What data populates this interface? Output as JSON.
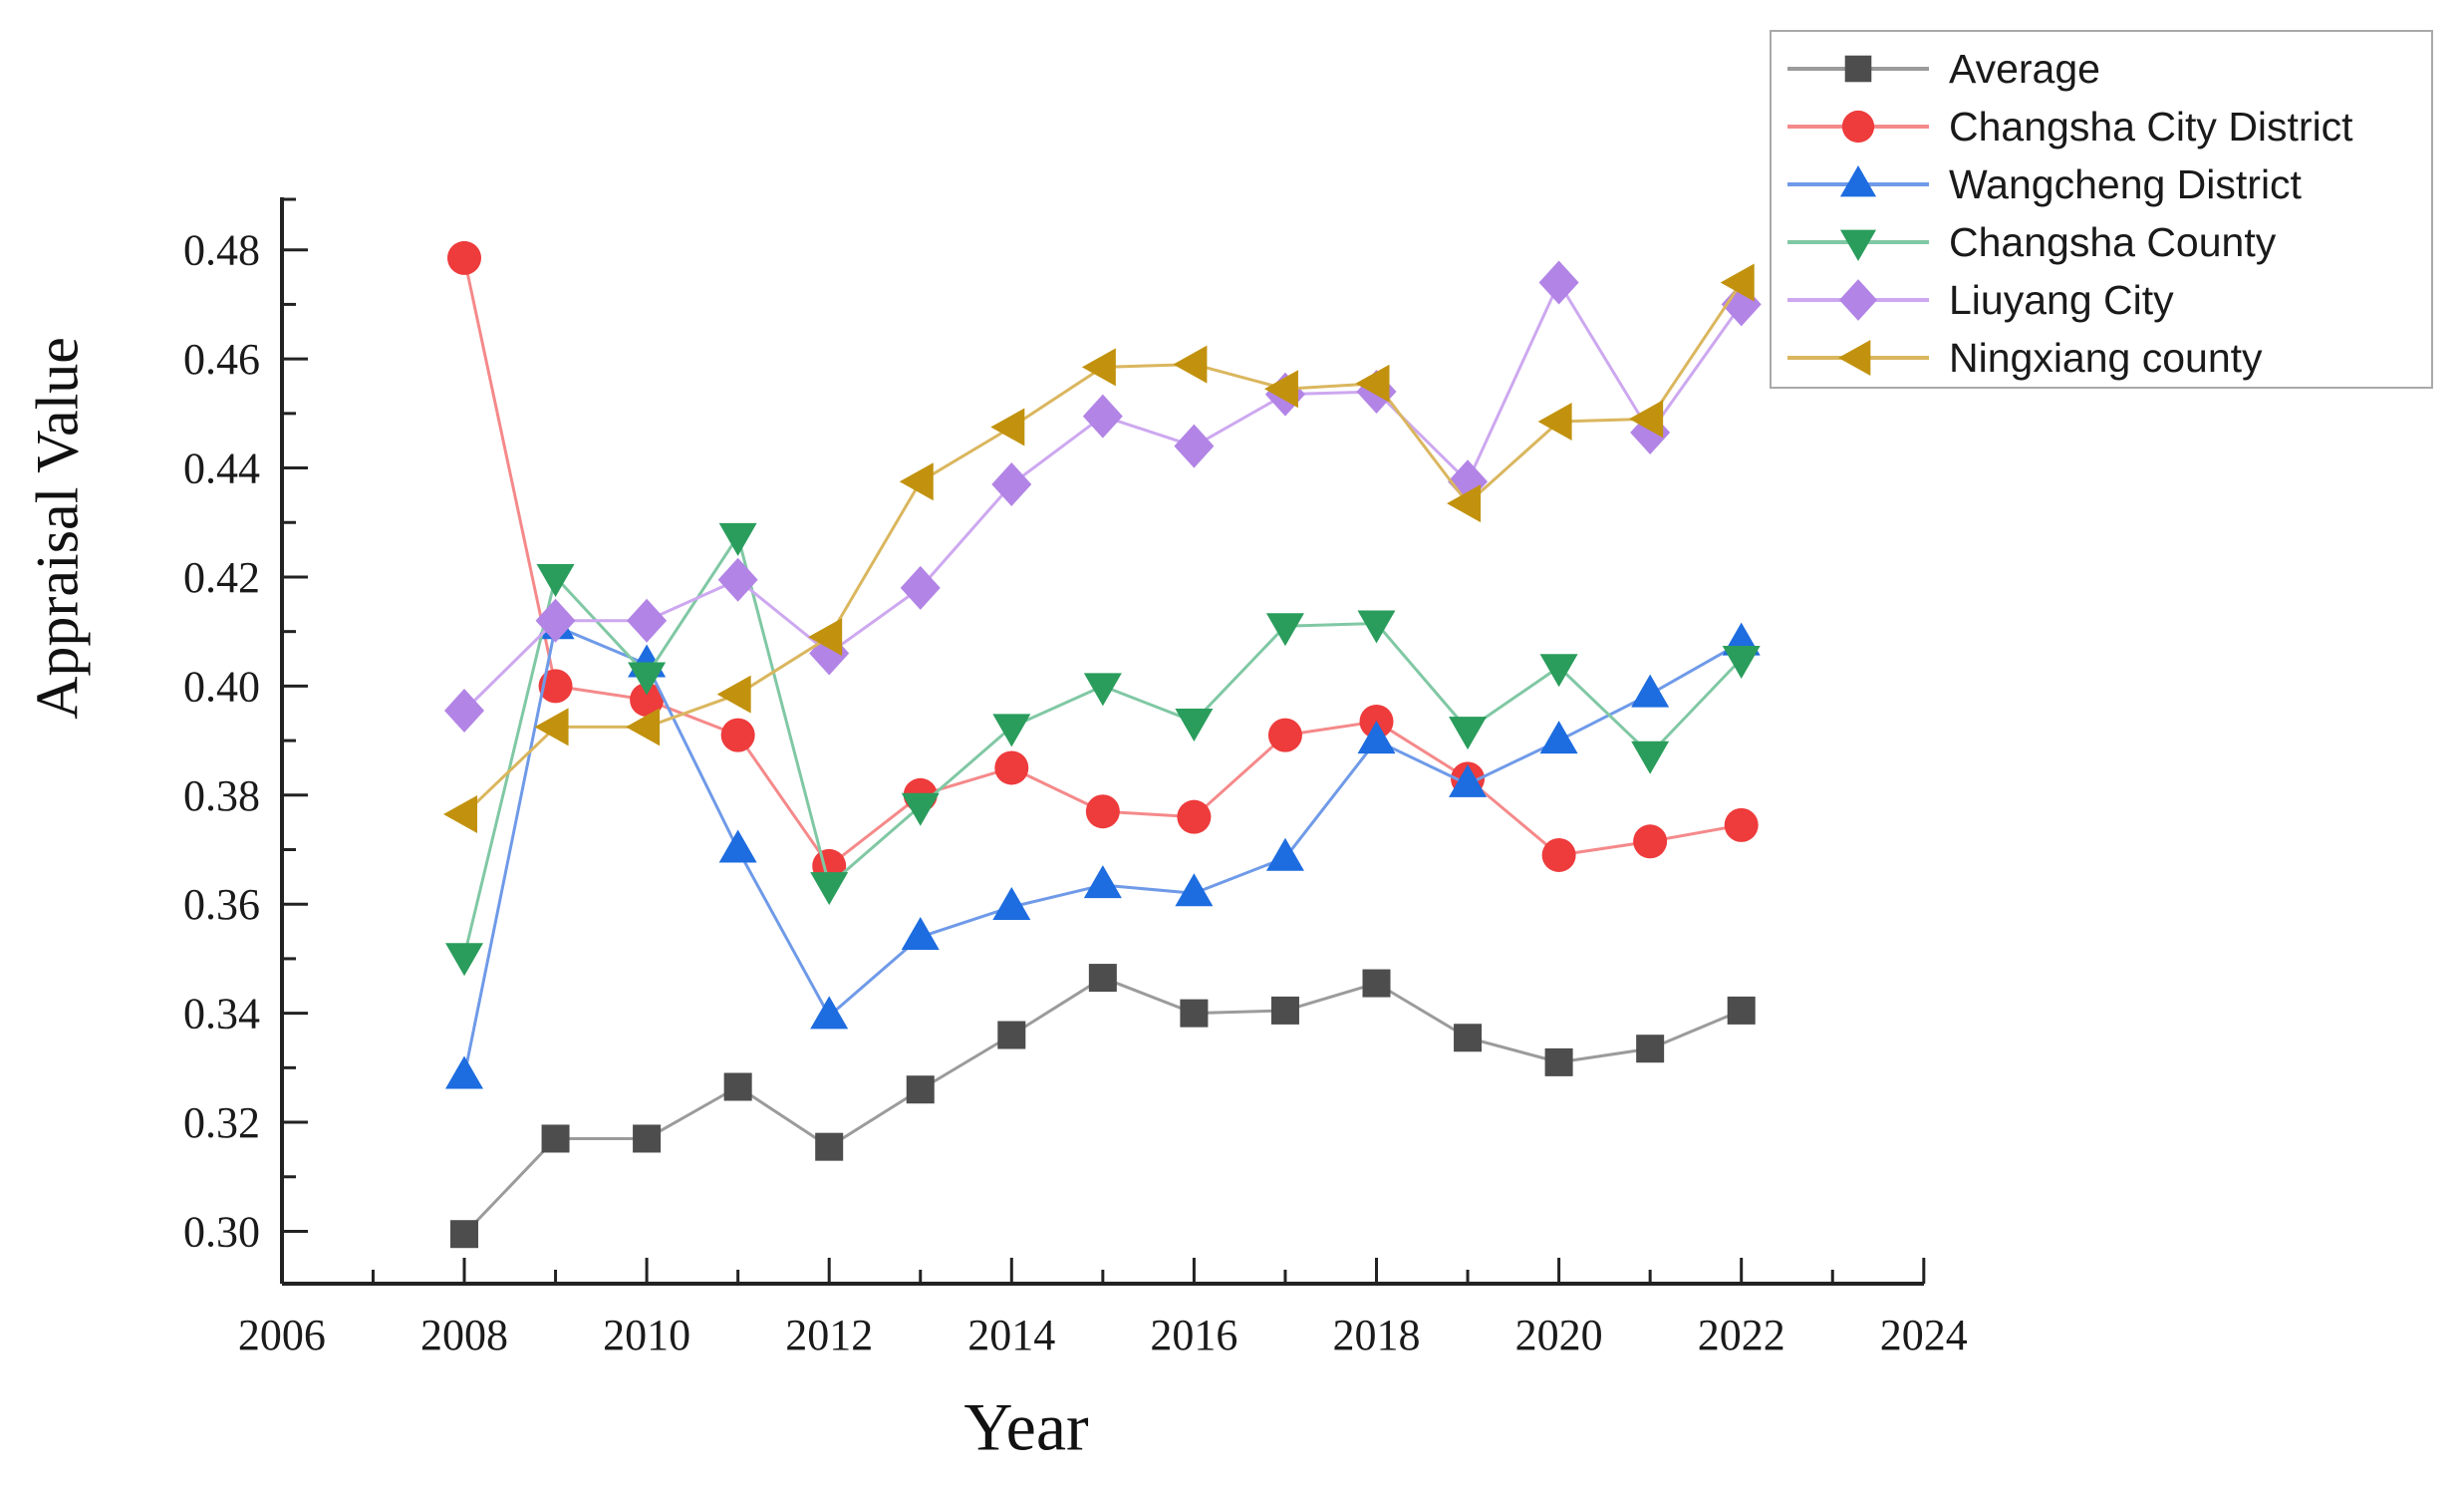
{
  "figure": {
    "background": "#ffffff"
  },
  "chart_data": {
    "type": "line",
    "title": "",
    "xlabel": "Year",
    "ylabel": "Appraisal Value",
    "grid": false,
    "legend_position": "top-right",
    "xlim": [
      2006,
      2024
    ],
    "ylim": [
      0.29,
      0.49
    ],
    "x": [
      2008,
      2009,
      2010,
      2011,
      2012,
      2013,
      2014,
      2015,
      2016,
      2017,
      2018,
      2019,
      2020,
      2021,
      2022
    ],
    "x_tick_labels": [
      "2006",
      "2008",
      "2010",
      "2012",
      "2014",
      "2016",
      "2018",
      "2020",
      "2022",
      "2024"
    ],
    "x_tick_values": [
      2006,
      2008,
      2010,
      2012,
      2014,
      2016,
      2018,
      2020,
      2022,
      2024
    ],
    "x_minor_tick_values": [
      2007,
      2009,
      2011,
      2013,
      2015,
      2017,
      2019,
      2021,
      2023
    ],
    "y_tick_labels": [
      "0.30",
      "0.32",
      "0.34",
      "0.36",
      "0.38",
      "0.40",
      "0.42",
      "0.44",
      "0.46",
      "0.48"
    ],
    "y_tick_values": [
      0.3,
      0.32,
      0.34,
      0.36,
      0.38,
      0.4,
      0.42,
      0.44,
      0.46,
      0.48
    ],
    "y_minor_tick_values": [
      0.31,
      0.33,
      0.35,
      0.37,
      0.39,
      0.41,
      0.43,
      0.45,
      0.47
    ],
    "series": [
      {
        "name": "Average",
        "marker": "square",
        "marker_color": "#4d4d4d",
        "line_color": "#9b9b9b",
        "values": [
          0.2995,
          0.317,
          0.317,
          0.3265,
          0.3155,
          0.326,
          0.336,
          0.3465,
          0.34,
          0.3405,
          0.3455,
          0.3355,
          0.331,
          0.3335,
          0.3405
        ]
      },
      {
        "name": "Changsha City District",
        "marker": "circle",
        "marker_color": "#ee3b3c",
        "line_color": "#f5898a",
        "values": [
          0.4785,
          0.4,
          0.3975,
          0.391,
          0.367,
          0.38,
          0.385,
          0.377,
          0.376,
          0.391,
          0.3935,
          0.383,
          0.369,
          0.3715,
          0.3745
        ]
      },
      {
        "name": "Wangcheng District",
        "marker": "triangle-up",
        "marker_color": "#1d6ce0",
        "line_color": "#6f9ae8",
        "values": [
          0.3285,
          0.411,
          0.404,
          0.37,
          0.3395,
          0.354,
          0.3595,
          0.3635,
          0.362,
          0.3685,
          0.39,
          0.382,
          0.39,
          0.3985,
          0.408
        ]
      },
      {
        "name": "Changsha County",
        "marker": "triangle-down",
        "marker_color": "#2a9d5c",
        "line_color": "#80c8a4",
        "values": [
          0.3505,
          0.42,
          0.402,
          0.4275,
          0.3635,
          0.378,
          0.3925,
          0.4,
          0.3935,
          0.411,
          0.4115,
          0.392,
          0.4035,
          0.3875,
          0.405
        ]
      },
      {
        "name": "Liuyang City",
        "marker": "diamond",
        "marker_color": "#b284e6",
        "line_color": "#cda8f0",
        "values": [
          0.3955,
          0.412,
          0.412,
          0.4195,
          0.406,
          0.418,
          0.437,
          0.4495,
          0.444,
          0.4535,
          0.454,
          0.4375,
          0.474,
          0.4465,
          0.47
        ]
      },
      {
        "name": "Ningxiang county",
        "marker": "triangle-left",
        "marker_color": "#c2920e",
        "line_color": "#dab65e",
        "values": [
          0.3765,
          0.3925,
          0.3925,
          0.3985,
          0.409,
          0.4375,
          0.4475,
          0.4585,
          0.459,
          0.4545,
          0.4555,
          0.4335,
          0.4485,
          0.449,
          0.474
        ]
      }
    ]
  }
}
